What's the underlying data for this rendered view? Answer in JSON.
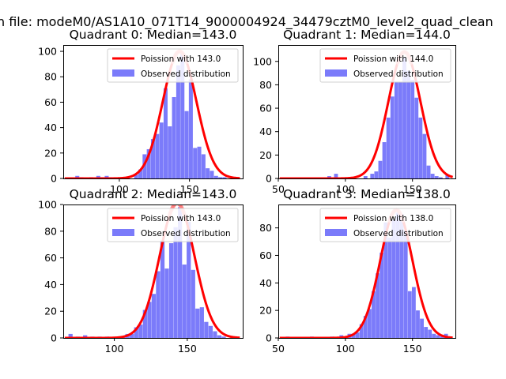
{
  "figure": {
    "title": "n file: modeM0/AS1A10_071T14_9000004924_34479cztM0_level2_quad_clean"
  },
  "colors": {
    "hist": "#7b7bfa",
    "fit": "#ff0000",
    "peak": "#ff8a8a",
    "axes": "#000000"
  },
  "chart_data": [
    {
      "type": "bar",
      "title": "Quadrant 0: Median=143.0",
      "xlim": [
        60,
        188
      ],
      "ylim": [
        0,
        105
      ],
      "xticks": [
        100,
        150
      ],
      "yticks": [
        0,
        20,
        40,
        60,
        80,
        100
      ],
      "bin_width": 2.85,
      "bins_x": [
        70,
        73,
        80,
        85,
        88,
        91,
        94,
        97,
        100,
        103,
        106,
        109,
        112,
        115,
        118,
        121,
        124,
        127,
        130,
        133,
        136,
        139,
        142,
        145,
        148,
        151,
        154,
        157,
        160,
        163,
        166,
        169,
        172,
        175,
        178,
        181,
        184
      ],
      "bins_y": [
        2,
        1,
        1,
        2,
        1,
        2,
        1,
        0,
        0,
        1,
        1,
        0,
        3,
        7,
        19,
        23,
        31,
        35,
        44,
        71,
        41,
        64,
        89,
        98,
        53,
        78,
        24,
        25,
        19,
        8,
        6,
        2,
        1,
        1,
        0,
        0,
        1
      ],
      "legend": [
        {
          "label": "Poission with 143.0",
          "kind": "line"
        },
        {
          "label": "Observed distribution",
          "kind": "patch"
        }
      ],
      "fit": {
        "label": "Poission with 143.0",
        "mean": 143.0,
        "peak": 100,
        "sigma": 12
      }
    },
    {
      "type": "bar",
      "title": "Quadrant 1: Median=144.0",
      "xlim": [
        50,
        182
      ],
      "ylim": [
        0,
        114
      ],
      "xticks": [
        50,
        100,
        150
      ],
      "yticks": [
        0,
        20,
        40,
        60,
        80,
        100
      ],
      "bin_width": 2.85,
      "bins_x": [
        60,
        65,
        70,
        80,
        88,
        93,
        100,
        105,
        110,
        115,
        120,
        123,
        126,
        129,
        132,
        135,
        138,
        141,
        144,
        147,
        150,
        153,
        156,
        159,
        162,
        165,
        168,
        171,
        176
      ],
      "bins_y": [
        1,
        1,
        1,
        1,
        2,
        4,
        1,
        1,
        0,
        2,
        4,
        6,
        15,
        31,
        52,
        70,
        82,
        82,
        103,
        92,
        84,
        69,
        52,
        38,
        11,
        4,
        2,
        1,
        3
      ],
      "legend": [
        {
          "label": "Poission with 144.0",
          "kind": "line"
        },
        {
          "label": "Observed distribution",
          "kind": "patch"
        }
      ],
      "fit": {
        "label": "Poission with 144.0",
        "mean": 144.0,
        "peak": 108,
        "sigma": 12
      }
    },
    {
      "type": "bar",
      "title": "Quadrant 2: Median=143.0",
      "xlim": [
        65,
        188
      ],
      "ylim": [
        0,
        100
      ],
      "xticks": [
        100,
        150
      ],
      "yticks": [
        0,
        20,
        40,
        60,
        80,
        100
      ],
      "bin_width": 2.85,
      "bins_x": [
        70,
        75,
        80,
        85,
        90,
        95,
        100,
        103,
        106,
        109,
        112,
        115,
        118,
        121,
        124,
        127,
        130,
        133,
        136,
        139,
        142,
        145,
        148,
        151,
        154,
        157,
        160,
        163,
        166,
        169,
        172,
        175,
        178,
        181
      ],
      "bins_y": [
        3,
        1,
        2,
        1,
        1,
        1,
        0,
        1,
        1,
        3,
        3,
        8,
        10,
        21,
        27,
        33,
        50,
        73,
        52,
        71,
        83,
        98,
        55,
        87,
        51,
        22,
        23,
        12,
        9,
        5,
        2,
        1,
        0,
        1
      ],
      "legend": [
        {
          "label": "Poission with 143.0",
          "kind": "line"
        },
        {
          "label": "Observed distribution",
          "kind": "patch"
        }
      ],
      "fit": {
        "label": "Poission with 143.0",
        "mean": 143.0,
        "peak": 101,
        "sigma": 12
      }
    },
    {
      "type": "bar",
      "title": "Quadrant 3: Median=138.0",
      "xlim": [
        50,
        182
      ],
      "ylim": [
        0,
        97
      ],
      "xticks": [
        50,
        100,
        150
      ],
      "yticks": [
        0,
        20,
        40,
        60,
        80
      ],
      "bin_width": 2.85,
      "bins_x": [
        57,
        75,
        90,
        97,
        100,
        103,
        106,
        109,
        112,
        115,
        118,
        121,
        124,
        127,
        130,
        133,
        136,
        139,
        142,
        145,
        148,
        151,
        154,
        157,
        160,
        163,
        166,
        169,
        172,
        175
      ],
      "bins_y": [
        1,
        1,
        1,
        2,
        1,
        3,
        3,
        4,
        10,
        16,
        21,
        34,
        47,
        62,
        84,
        73,
        86,
        91,
        90,
        78,
        34,
        37,
        20,
        14,
        8,
        6,
        3,
        2,
        1,
        3
      ],
      "legend": [
        {
          "label": "Poission with 138.0",
          "kind": "line"
        },
        {
          "label": "Observed distribution",
          "kind": "patch"
        }
      ],
      "fit": {
        "label": "Poission with 138.0",
        "mean": 138.0,
        "peak": 93,
        "sigma": 12
      }
    }
  ]
}
